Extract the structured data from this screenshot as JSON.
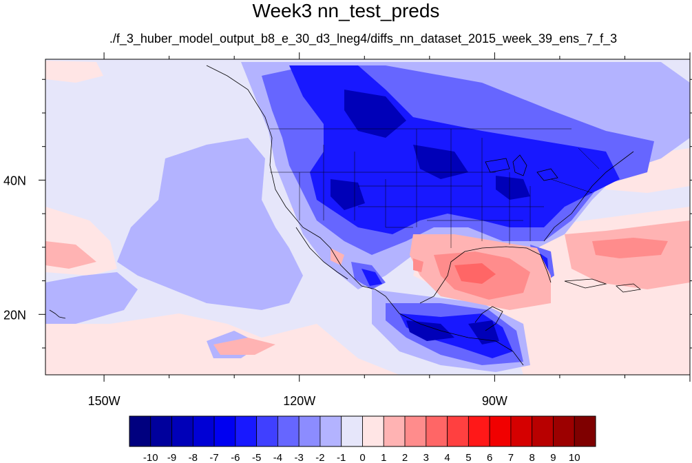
{
  "title": "Week3 nn_test_preds",
  "subtitle": "./f_3_huber_model_output_b8_e_30_d3_lneg4/diffs_nn_dataset_2015_week_39_ens_7_f_3",
  "map": {
    "lon_labels": [
      {
        "lon": -150,
        "text": "150W"
      },
      {
        "lon": -120,
        "text": "120W"
      },
      {
        "lon": -90,
        "text": "90W"
      }
    ],
    "lat_labels": [
      {
        "lat": 40,
        "text": "40N"
      },
      {
        "lat": 20,
        "text": "20N"
      }
    ],
    "lon_range": [
      -159,
      -60
    ],
    "lat_range": [
      11,
      58
    ]
  },
  "colorbar": {
    "colors": [
      "#00007f",
      "#00009c",
      "#0000b8",
      "#0000d5",
      "#0000f1",
      "#1818ff",
      "#4040ff",
      "#6666ff",
      "#8c8cff",
      "#b3b3ff",
      "#e6e6fa",
      "#ffe5e5",
      "#ffb3b3",
      "#ff8c8c",
      "#ff6666",
      "#ff4040",
      "#ff1818",
      "#f10000",
      "#d50000",
      "#b80000",
      "#9c0000",
      "#7f0000"
    ],
    "labels": [
      "-10",
      "-9",
      "-8",
      "-7",
      "-6",
      "-5",
      "-4",
      "-3",
      "-2",
      "-1",
      "0",
      "1",
      "2",
      "3",
      "4",
      "5",
      "6",
      "7",
      "8",
      "9",
      "10"
    ]
  },
  "palette": {
    "background": "#e6e6fa",
    "neg_light": "#b3b3ff",
    "neg_mid": "#6666ff",
    "neg_strong": "#1818ff",
    "neg_deep": "#0000b8",
    "pos_light": "#ffe5e5",
    "pos_mid": "#ffb3b3",
    "pos_strong": "#ff8c8c",
    "pos_deep": "#ff6666"
  }
}
